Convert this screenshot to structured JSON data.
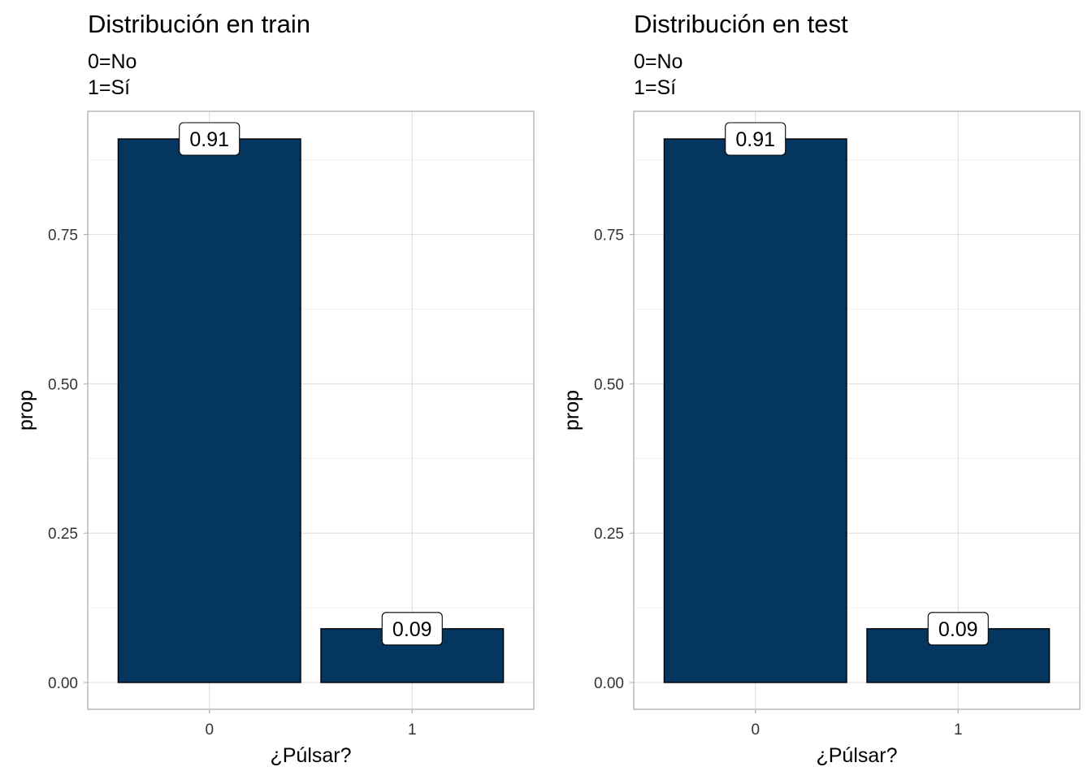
{
  "colors": {
    "bar_fill": "#04365F",
    "bar_outline": "#000000"
  },
  "chart_data": [
    {
      "type": "bar",
      "title": "Distribución en train",
      "subtitle_lines": [
        "0=No",
        "1=Sí"
      ],
      "categories": [
        "0",
        "1"
      ],
      "values": [
        0.91,
        0.09
      ],
      "data_labels": [
        "0.91",
        "0.09"
      ],
      "xlabel": "¿Púlsar?",
      "ylabel": "prop",
      "ylim": [
        0,
        0.955
      ],
      "yticks": [
        0,
        0.25,
        0.5,
        0.75
      ],
      "ytick_labels": [
        "0.00",
        "0.25",
        "0.50",
        "0.75"
      ],
      "grid": true
    },
    {
      "type": "bar",
      "title": "Distribución en test",
      "subtitle_lines": [
        "0=No",
        "1=Sí"
      ],
      "categories": [
        "0",
        "1"
      ],
      "values": [
        0.91,
        0.09
      ],
      "data_labels": [
        "0.91",
        "0.09"
      ],
      "xlabel": "¿Púlsar?",
      "ylabel": "prop",
      "ylim": [
        0,
        0.955
      ],
      "yticks": [
        0,
        0.25,
        0.5,
        0.75
      ],
      "ytick_labels": [
        "0.00",
        "0.25",
        "0.50",
        "0.75"
      ],
      "grid": true
    }
  ]
}
